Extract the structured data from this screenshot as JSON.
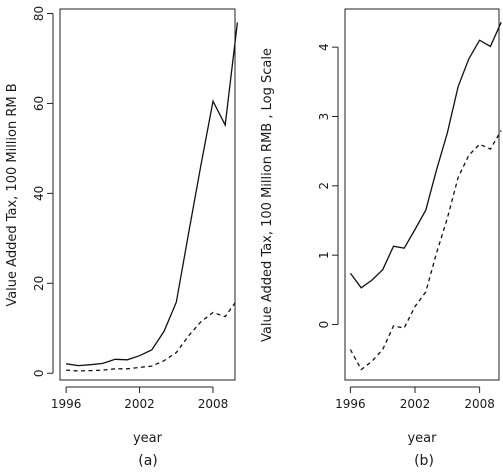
{
  "chart_data": [
    {
      "type": "line",
      "panel_label": "(a)",
      "xlabel": "year",
      "ylabel": "Value Added Tax, 100 Million RM  B",
      "xlim": [
        1995.5,
        2009.8
      ],
      "ylim": [
        -1.5,
        81
      ],
      "x_ticks": [
        1996,
        2002,
        2008
      ],
      "y_ticks": [
        0,
        20,
        40,
        60,
        80
      ],
      "grid": false,
      "x": [
        1996,
        1997,
        1998,
        1999,
        2000,
        2001,
        2002,
        2003,
        2004,
        2005,
        2006,
        2007,
        2008,
        2009,
        2010
      ],
      "series": [
        {
          "style": "solid",
          "values": [
            2.1,
            1.7,
            1.9,
            2.2,
            3.1,
            3.0,
            3.9,
            5.2,
            9.3,
            15.8,
            31.0,
            46.0,
            60.5,
            55.2,
            78.0
          ]
        },
        {
          "style": "dashed",
          "values": [
            0.7,
            0.5,
            0.6,
            0.7,
            1.0,
            1.0,
            1.3,
            1.6,
            2.8,
            4.6,
            8.3,
            11.4,
            13.5,
            12.6,
            16.4
          ]
        }
      ]
    },
    {
      "type": "line",
      "panel_label": "(b)",
      "xlabel": "year",
      "ylabel": "Value Added Tax, 100 Million RMB   , Log Scale",
      "xlim": [
        1995.5,
        2009.8
      ],
      "ylim": [
        -0.8,
        4.55
      ],
      "x_ticks": [
        1996,
        2002,
        2008
      ],
      "y_ticks": [
        0,
        1,
        2,
        3,
        4
      ],
      "grid": false,
      "x": [
        1996,
        1997,
        1998,
        1999,
        2000,
        2001,
        2002,
        2003,
        2004,
        2005,
        2006,
        2007,
        2008,
        2009,
        2010
      ],
      "series": [
        {
          "style": "solid",
          "values": [
            0.74,
            0.53,
            0.64,
            0.79,
            1.13,
            1.1,
            1.37,
            1.65,
            2.23,
            2.76,
            3.43,
            3.83,
            4.1,
            4.01,
            4.36
          ]
        },
        {
          "style": "dashed",
          "values": [
            -0.36,
            -0.65,
            -0.53,
            -0.36,
            -0.02,
            -0.05,
            0.26,
            0.47,
            1.03,
            1.53,
            2.12,
            2.44,
            2.6,
            2.53,
            2.8
          ]
        }
      ]
    }
  ]
}
